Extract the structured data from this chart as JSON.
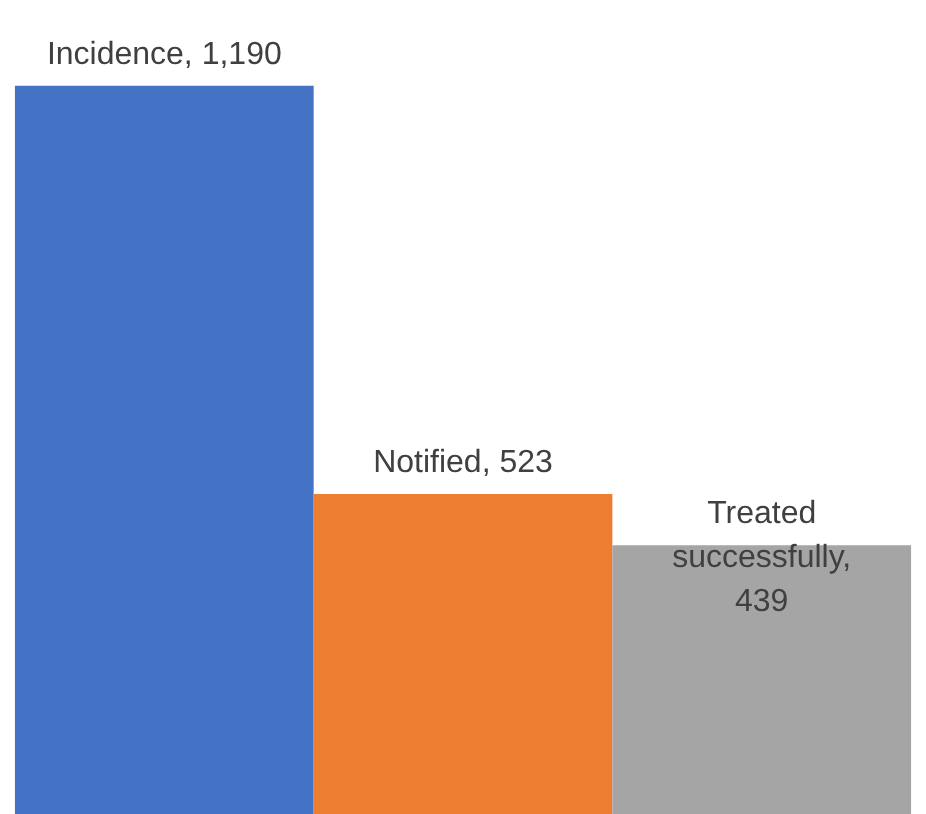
{
  "chart_data": {
    "type": "bar",
    "categories": [
      null,
      null,
      null
    ],
    "values": [
      1190,
      523,
      439
    ],
    "colors": [
      "#4472c4",
      "#ed7d31",
      "#a5a5a5"
    ],
    "value_labels": [
      "Incidence,  1,190",
      "Notified,  523",
      "Treated successfully, 439"
    ],
    "ylim": [
      0,
      1330
    ]
  }
}
